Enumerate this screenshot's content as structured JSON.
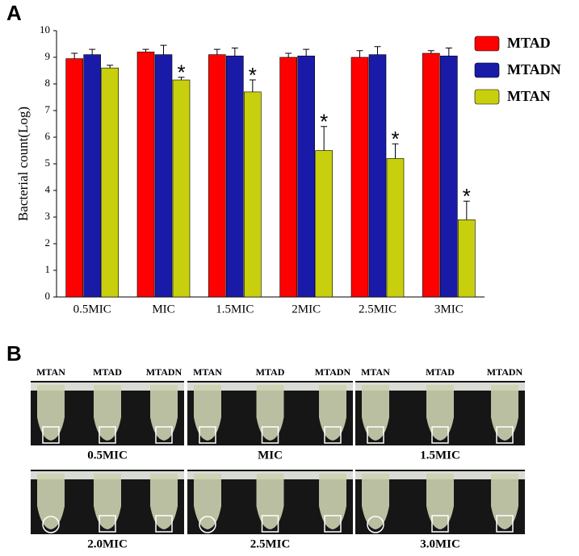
{
  "chart_data": {
    "type": "bar",
    "panel_label": "A",
    "ylabel": "Bacterial count(Log)",
    "categories": [
      "0.5MIC",
      "MIC",
      "1.5MIC",
      "2MIC",
      "2.5MIC",
      "3MIC"
    ],
    "series": [
      {
        "name": "MTAD",
        "color": "#ff0000",
        "values": [
          8.95,
          9.2,
          9.1,
          9.0,
          9.0,
          9.15
        ],
        "errors": [
          0.2,
          0.1,
          0.2,
          0.15,
          0.25,
          0.1
        ]
      },
      {
        "name": "MTADN",
        "color": "#1a1aa8",
        "values": [
          9.1,
          9.1,
          9.05,
          9.05,
          9.1,
          9.05
        ],
        "errors": [
          0.2,
          0.35,
          0.3,
          0.25,
          0.3,
          0.3
        ]
      },
      {
        "name": "MTAN",
        "color": "#c8cf0c",
        "values": [
          8.6,
          8.15,
          7.7,
          5.5,
          5.2,
          2.9
        ],
        "errors": [
          0.1,
          0.1,
          0.45,
          0.9,
          0.55,
          0.7
        ]
      }
    ],
    "significance": [
      null,
      "*",
      "*",
      "*",
      "*",
      "*"
    ],
    "ylim": [
      0,
      10
    ],
    "yticks": [
      0,
      1,
      2,
      3,
      4,
      5,
      6,
      7,
      8,
      9,
      10
    ],
    "legend": "right"
  },
  "panel_b": {
    "label": "B",
    "panels": [
      {
        "tubes": [
          "MTAN",
          "MTAD",
          "MTADN"
        ],
        "caption": "0.5MIC"
      },
      {
        "tubes": [
          "MTAN",
          "MTAD",
          "MTADN"
        ],
        "caption": "MIC"
      },
      {
        "tubes": [
          "MTAN",
          "MTAD",
          "MTADN"
        ],
        "caption": "1.5MIC"
      },
      {
        "caption": "2.0MIC"
      },
      {
        "caption": "2.5MIC"
      },
      {
        "caption": "3.0MIC"
      }
    ]
  }
}
